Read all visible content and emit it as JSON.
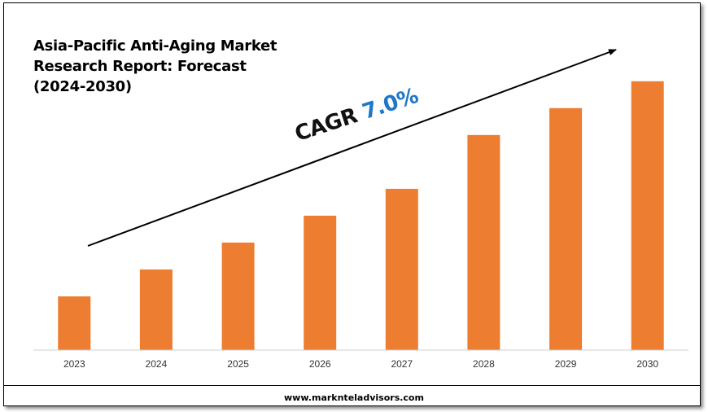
{
  "title_lines": [
    "Asia-Pacific Anti-Aging Market",
    "Research Report: Forecast",
    "(2024-2030)"
  ],
  "cagr": {
    "label": "CAGR",
    "value": "7.0%",
    "value_color": "#1f77c8"
  },
  "footer": {
    "website": "www.marknteladvisors.com"
  },
  "chart_data": {
    "type": "bar",
    "title": "Asia-Pacific Anti-Aging Market Research Report: Forecast (2024-2030)",
    "categories": [
      "2023",
      "2024",
      "2025",
      "2026",
      "2027",
      "2028",
      "2029",
      "2030"
    ],
    "values": [
      1.0,
      1.5,
      2.0,
      2.5,
      3.0,
      4.0,
      4.5,
      5.0
    ],
    "value_note_unit": "relative",
    "ylim": [
      0,
      5.3
    ],
    "bar_color": "#ed7d31",
    "grid": false,
    "legend": "none",
    "xlabel": "",
    "ylabel": ""
  }
}
